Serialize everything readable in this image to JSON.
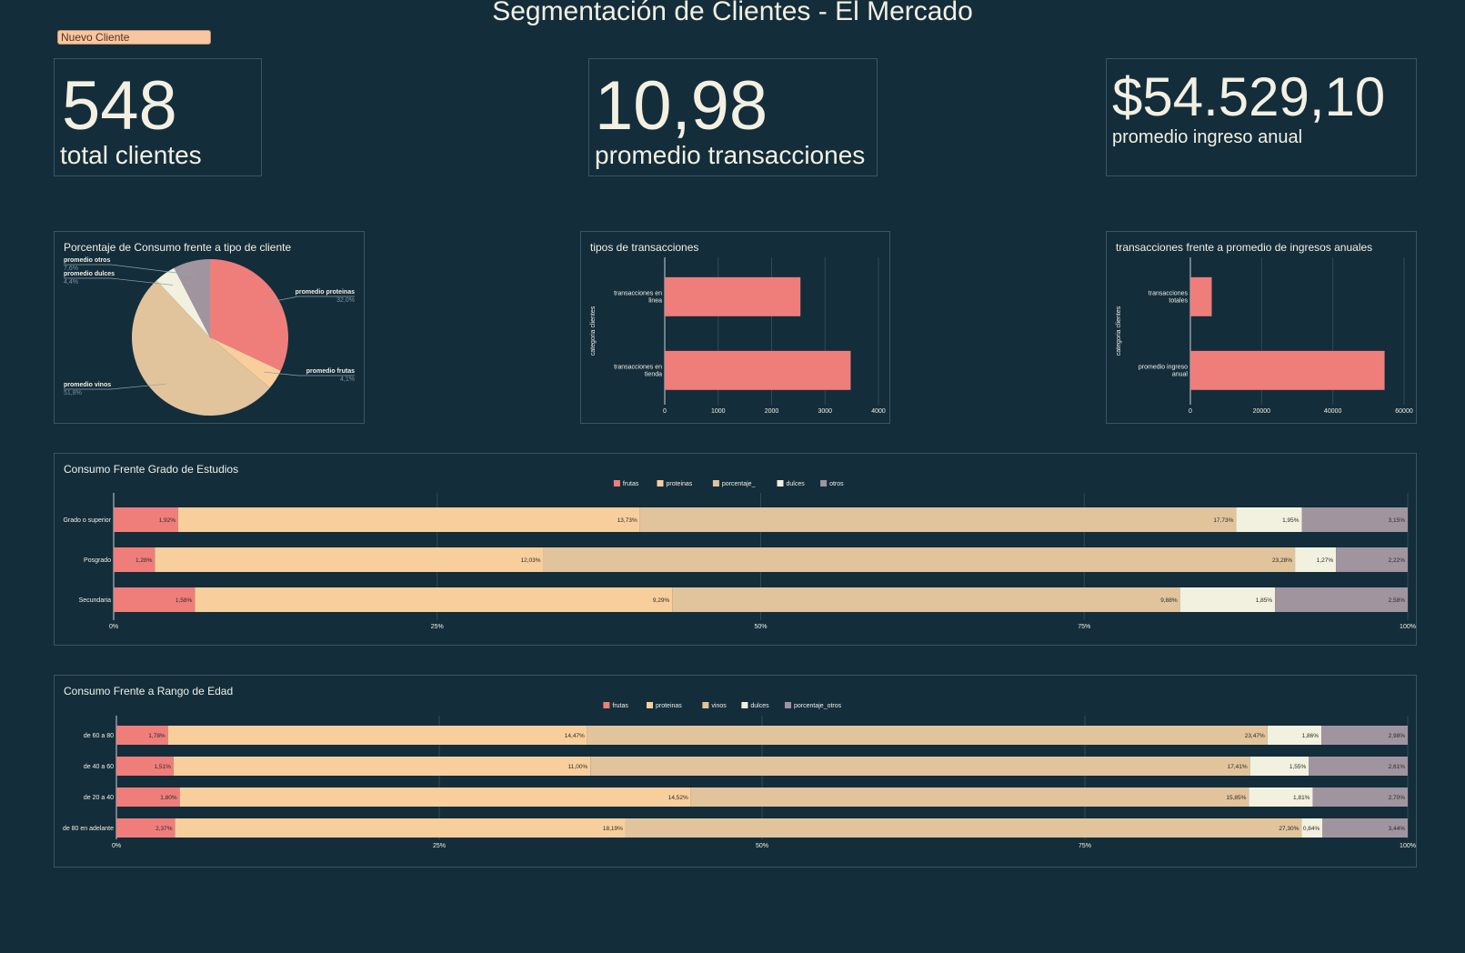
{
  "header": {
    "title": "Segmentación de Clientes - El Mercado",
    "new_client_label": "Nuevo Cliente"
  },
  "kpis": [
    {
      "value": "548",
      "label": "total clientes"
    },
    {
      "value": "10,98",
      "label": "promedio transacciones"
    },
    {
      "value": "$54.529,10",
      "label": "promedio ingreso anual"
    }
  ],
  "colors": {
    "background": "#132d3b",
    "frutas": "#ef7e7b",
    "proteinas": "#f8cf9c",
    "vinos": "#e1c49c",
    "dulces": "#f2f1df",
    "otros": "#a0959f"
  },
  "chart_data": [
    {
      "type": "pie",
      "title": "Porcentaje de Consumo frente a tipo de cliente",
      "labels": [
        "promedio proteinas",
        "promedio frutas",
        "promedio vinos",
        "promedio dulces",
        "promedio otros"
      ],
      "values": [
        32.0,
        4.1,
        51.8,
        4.4,
        7.6
      ],
      "value_labels": [
        "32,0%",
        "4,1%",
        "51,8%",
        "4,4%",
        "7,6%"
      ],
      "colors": [
        "#ef7e7b",
        "#f8cf9c",
        "#e1c49c",
        "#f2f1df",
        "#a0959f"
      ]
    },
    {
      "type": "bar",
      "orientation": "horizontal",
      "title": "tipos de transacciones",
      "ylabel": "categoria clientes",
      "categories": [
        [
          "transacciones en",
          "linea"
        ],
        [
          "transacciones en",
          "tienda"
        ]
      ],
      "values": [
        2540,
        3480
      ],
      "xlim": [
        0,
        4000
      ],
      "xticks": [
        0,
        1000,
        2000,
        3000,
        4000
      ]
    },
    {
      "type": "bar",
      "orientation": "horizontal",
      "title": "transacciones frente a promedio de ingresos anuales",
      "ylabel": "categoria clientes",
      "categories": [
        [
          "transacciones",
          "totales"
        ],
        [
          "promedio ingreso",
          "anual"
        ]
      ],
      "values": [
        6000,
        54529.1
      ],
      "xlim": [
        0,
        60000
      ],
      "xticks": [
        0,
        20000,
        40000,
        60000
      ]
    },
    {
      "type": "bar",
      "orientation": "horizontal",
      "stacked": "percent",
      "title": "Consumo Frente Grado de Estudios",
      "legend": [
        "frutas",
        "proteinas",
        "porcentaje_",
        "dulces",
        "otros"
      ],
      "legend_position": "top",
      "categories": [
        "Grado o superior",
        "Posgrado",
        "Secundaria"
      ],
      "series": [
        {
          "values": [
            1.92,
            1.28,
            1.58
          ],
          "labels": [
            "1,92%",
            "1,28%",
            "1,58%"
          ]
        },
        {
          "values": [
            13.73,
            12.03,
            9.29
          ],
          "labels": [
            "13,73%",
            "12,03%",
            "9,29%"
          ]
        },
        {
          "values": [
            17.73,
            23.28,
            9.88
          ],
          "labels": [
            "17,73%",
            "23,28%",
            "9,88%"
          ]
        },
        {
          "values": [
            1.95,
            1.27,
            1.85
          ],
          "labels": [
            "1,95%",
            "1,27%",
            "1,85%"
          ]
        },
        {
          "values": [
            3.15,
            2.22,
            2.58
          ],
          "labels": [
            "3,15%",
            "2,22%",
            "2,58%"
          ]
        }
      ],
      "xticks": [
        "0%",
        "25%",
        "50%",
        "75%",
        "100%"
      ]
    },
    {
      "type": "bar",
      "orientation": "horizontal",
      "stacked": "percent",
      "title": "Consumo Frente a Rango de Edad",
      "legend": [
        "frutas",
        "proteinas",
        "vinos",
        "dulces",
        "porcentaje_otros"
      ],
      "legend_position": "top",
      "categories": [
        "de 60 a 80",
        "de 40 a 60",
        "de 20 a 40",
        "de 80 en adelante"
      ],
      "series": [
        {
          "values": [
            1.78,
            1.51,
            1.8,
            2.37
          ],
          "labels": [
            "1,78%",
            "1,51%",
            "1,80%",
            "2,37%"
          ]
        },
        {
          "values": [
            14.47,
            11.0,
            14.52,
            18.19
          ],
          "labels": [
            "14,47%",
            "11,00%",
            "14,52%",
            "18,19%"
          ]
        },
        {
          "values": [
            23.47,
            17.41,
            15.85,
            27.3
          ],
          "labels": [
            "23,47%",
            "17,41%",
            "15,85%",
            "27,30%"
          ]
        },
        {
          "values": [
            1.86,
            1.55,
            1.81,
            0.84
          ],
          "labels": [
            "1,86%",
            "1,55%",
            "1,81%",
            "0,84%"
          ]
        },
        {
          "values": [
            2.98,
            2.61,
            2.7,
            3.44
          ],
          "labels": [
            "2,98%",
            "2,61%",
            "2,70%",
            "3,44%"
          ]
        }
      ],
      "xticks": [
        "0%",
        "25%",
        "50%",
        "75%",
        "100%"
      ]
    }
  ]
}
